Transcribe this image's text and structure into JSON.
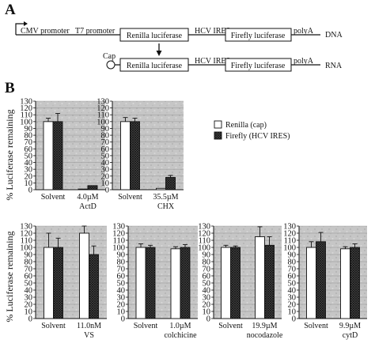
{
  "panels": {
    "a_label": "A",
    "b_label": "B"
  },
  "schematic": {
    "dna_row": [
      "CMV promoter",
      "T7 promoter",
      "Renilla luciferase",
      "HCV IRES",
      "Firefly luciferase",
      "polyA",
      "DNA"
    ],
    "rna_row": [
      "Cap",
      "Renilla luciferase",
      "HCV IRES",
      "Firefly luciferase",
      "polyA",
      "RNA"
    ]
  },
  "chart_data": {
    "ylabel": "% Luciferase remaining",
    "legend": [
      {
        "name": "Renilla (cap)",
        "color": "#ffffff",
        "pattern": "none"
      },
      {
        "name": "Firefly (HCV IRES)",
        "color": "#333333",
        "pattern": "crosshatch"
      }
    ],
    "legend_position": "top-right",
    "plot_background": "#c8c8c8",
    "charts": [
      {
        "type": "bar",
        "ylim": [
          0,
          130
        ],
        "ticks": [
          0,
          10,
          20,
          30,
          40,
          50,
          60,
          70,
          80,
          90,
          100,
          110,
          120,
          130
        ],
        "categories": [
          "Solvent",
          "4.0µM"
        ],
        "sublabels": [
          "",
          "ActD"
        ],
        "series": [
          {
            "name": "Renilla (cap)",
            "values": [
              100,
              1
            ],
            "errors": [
              5,
              0
            ]
          },
          {
            "name": "Firefly (HCV IRES)",
            "values": [
              100,
              6
            ],
            "errors": [
              12,
              0
            ]
          }
        ]
      },
      {
        "type": "bar",
        "ylim": [
          0,
          130
        ],
        "ticks": [
          0,
          10,
          20,
          30,
          40,
          50,
          60,
          70,
          80,
          90,
          100,
          110,
          120,
          130
        ],
        "categories": [
          "Solvent",
          "35.5µM"
        ],
        "sublabels": [
          "",
          "CHX"
        ],
        "series": [
          {
            "name": "Renilla (cap)",
            "values": [
              100,
              2
            ],
            "errors": [
              6,
              0
            ]
          },
          {
            "name": "Firefly (HCV IRES)",
            "values": [
              100,
              18
            ],
            "errors": [
              5,
              3
            ]
          }
        ]
      },
      {
        "type": "bar",
        "ylim": [
          0,
          130
        ],
        "ticks": [
          0,
          10,
          20,
          30,
          40,
          50,
          60,
          70,
          80,
          90,
          100,
          110,
          120,
          130
        ],
        "categories": [
          "Solvent",
          "11.0nM"
        ],
        "sublabels": [
          "",
          "VS"
        ],
        "series": [
          {
            "name": "Renilla (cap)",
            "values": [
              100,
              120
            ],
            "errors": [
              20,
              10
            ]
          },
          {
            "name": "Firefly (HCV IRES)",
            "values": [
              100,
              90
            ],
            "errors": [
              13,
              12
            ]
          }
        ]
      },
      {
        "type": "bar",
        "ylim": [
          0,
          130
        ],
        "ticks": [
          0,
          10,
          20,
          30,
          40,
          50,
          60,
          70,
          80,
          90,
          100,
          110,
          120,
          130
        ],
        "categories": [
          "Solvent",
          "1.0µM"
        ],
        "sublabels": [
          "",
          "colchicine"
        ],
        "series": [
          {
            "name": "Renilla (cap)",
            "values": [
              100,
              98
            ],
            "errors": [
              5,
              3
            ]
          },
          {
            "name": "Firefly (HCV IRES)",
            "values": [
              100,
              100
            ],
            "errors": [
              3,
              4
            ]
          }
        ]
      },
      {
        "type": "bar",
        "ylim": [
          0,
          130
        ],
        "ticks": [
          0,
          10,
          20,
          30,
          40,
          50,
          60,
          70,
          80,
          90,
          100,
          110,
          120,
          130
        ],
        "categories": [
          "Solvent",
          "19.9µM"
        ],
        "sublabels": [
          "",
          "nocodazole"
        ],
        "series": [
          {
            "name": "Renilla (cap)",
            "values": [
              100,
              115
            ],
            "errors": [
              3,
              14
            ]
          },
          {
            "name": "Firefly (HCV IRES)",
            "values": [
              100,
              103
            ],
            "errors": [
              2,
              12
            ]
          }
        ]
      },
      {
        "type": "bar",
        "ylim": [
          0,
          130
        ],
        "ticks": [
          0,
          10,
          20,
          30,
          40,
          50,
          60,
          70,
          80,
          90,
          100,
          110,
          120,
          130
        ],
        "categories": [
          "Solvent",
          "9.9µM"
        ],
        "sublabels": [
          "",
          "cytD"
        ],
        "series": [
          {
            "name": "Renilla (cap)",
            "values": [
              100,
              98
            ],
            "errors": [
              8,
              3
            ]
          },
          {
            "name": "Firefly (HCV IRES)",
            "values": [
              108,
              100
            ],
            "errors": [
              13,
              5
            ]
          }
        ]
      }
    ]
  }
}
